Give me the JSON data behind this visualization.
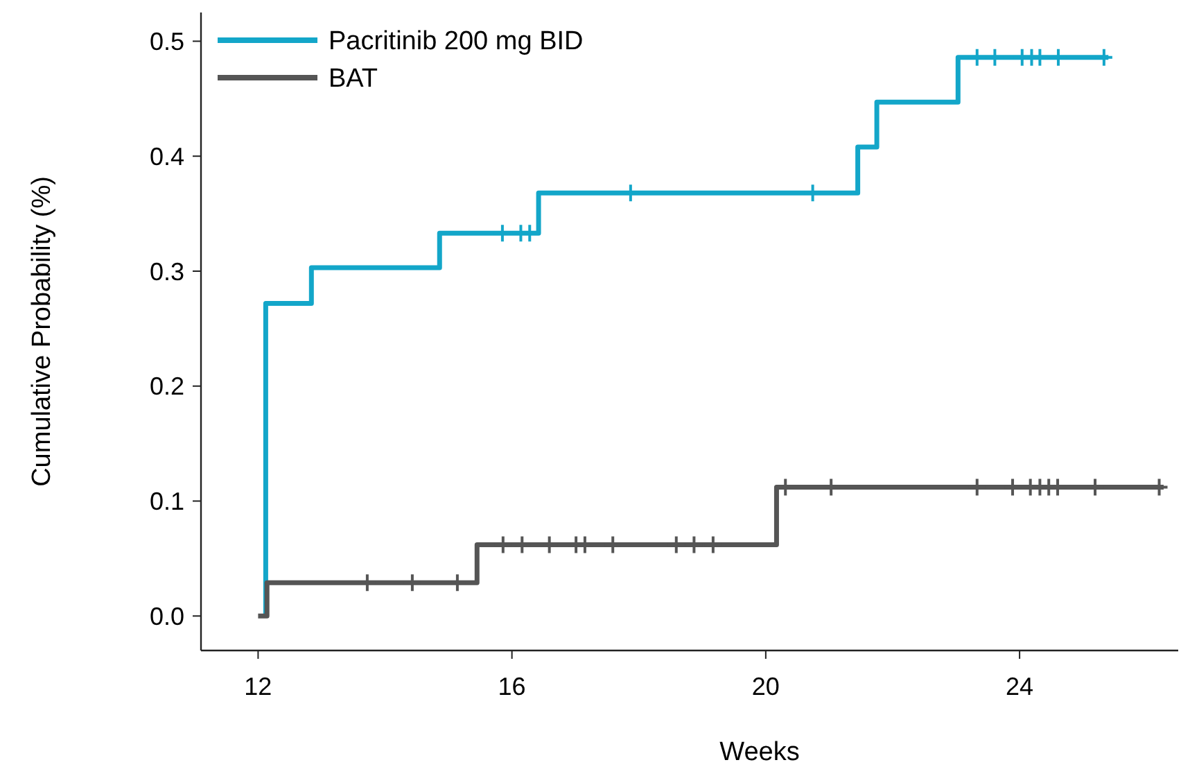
{
  "chart_data": {
    "type": "step",
    "xlabel": "Weeks",
    "ylabel": "Cumulative Probability (%)",
    "xlim": [
      11.1,
      26.5
    ],
    "xticks": [
      12,
      16,
      20,
      24
    ],
    "ylim": [
      -0.03,
      0.525
    ],
    "yticks": [
      {
        "value": 0,
        "label": "0.0"
      },
      {
        "value": 0.1,
        "label": "0.1"
      },
      {
        "value": 0.2,
        "label": "0.2"
      },
      {
        "value": 0.3,
        "label": "0.3"
      },
      {
        "value": 0.4,
        "label": "0.4"
      },
      {
        "value": 0.5,
        "label": "0.5"
      }
    ],
    "grid": false,
    "legend": "top left",
    "series": [
      {
        "name": "Pacritinib 200 mg BID",
        "color": "#13a6c9",
        "x": [
          12.12,
          12.12,
          12.84,
          14.86,
          16.42,
          21.45,
          21.75,
          23.03,
          25.4
        ],
        "values": [
          0,
          0.272,
          0.303,
          0.333,
          0.368,
          0.408,
          0.447,
          0.486,
          0.486
        ]
      },
      {
        "name": "BAT",
        "color": "#555555",
        "x": [
          12.0,
          12.14,
          15.45,
          20.17,
          26.27
        ],
        "values": [
          0,
          0.029,
          0.062,
          0.112,
          0.112
        ]
      },
      {
        "type": "scatter",
        "marker": "cross",
        "color": "#13a6c9",
        "x": [
          15.85,
          16.14,
          16.28,
          17.87,
          20.74,
          23.33,
          23.61,
          24.04,
          24.19,
          24.32,
          24.61,
          25.33
        ],
        "values": [
          0.333,
          0.333,
          0.333,
          0.368,
          0.368,
          0.486,
          0.486,
          0.486,
          0.486,
          0.486,
          0.486,
          0.486
        ]
      },
      {
        "type": "scatter",
        "marker": "cross",
        "color": "#555555",
        "x": [
          13.72,
          14.43,
          15.14,
          15.86,
          16.16,
          16.59,
          17.01,
          17.15,
          17.59,
          18.59,
          18.87,
          19.17,
          20.31,
          21.03,
          23.33,
          23.89,
          24.17,
          24.32,
          24.46,
          24.6,
          25.19,
          26.2
        ],
        "values": [
          0.029,
          0.029,
          0.029,
          0.062,
          0.062,
          0.062,
          0.062,
          0.062,
          0.062,
          0.062,
          0.062,
          0.062,
          0.112,
          0.112,
          0.112,
          0.112,
          0.112,
          0.112,
          0.112,
          0.112,
          0.112,
          0.112
        ]
      }
    ]
  }
}
